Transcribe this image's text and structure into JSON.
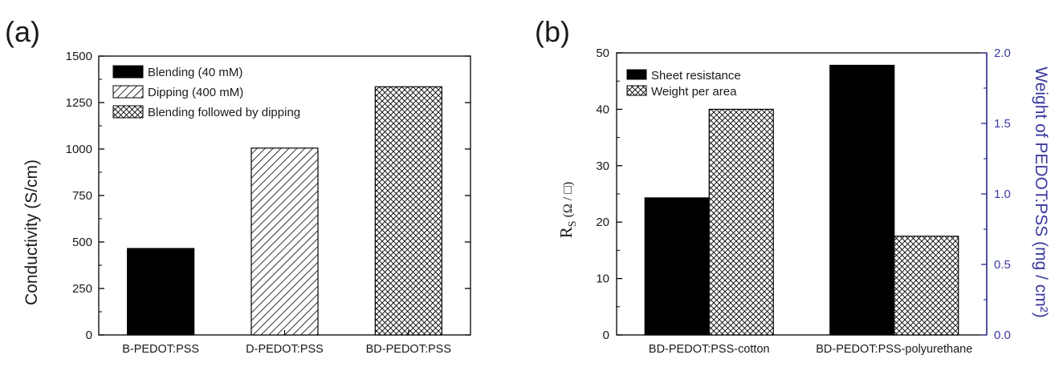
{
  "colors": {
    "bar_fill_solid": "#000000",
    "pattern_bg": "#ffffff",
    "pattern_line": "#000000",
    "right_axis": "#3a3aa0"
  },
  "chart_data": [
    {
      "panel_label": "(a)",
      "type": "bar",
      "title": "",
      "xlabel": "",
      "ylabel": "Conductivity (S/cm)",
      "ylim": [
        0,
        1500
      ],
      "yticks": [
        "0",
        "250",
        "500",
        "750",
        "1000",
        "1250",
        "1500"
      ],
      "ytick_values": [
        0,
        250,
        500,
        750,
        1000,
        1250,
        1500
      ],
      "categories": [
        "B-PEDOT:PSS",
        "D-PEDOT:PSS",
        "BD-PEDOT:PSS"
      ],
      "values": [
        465,
        1005,
        1335
      ],
      "bar_patterns": [
        "solid",
        "diagonal",
        "crosshatch"
      ],
      "legend": [
        {
          "label": "Blending (40 mM)",
          "pattern": "solid"
        },
        {
          "label": "Dipping (400 mM)",
          "pattern": "diagonal"
        },
        {
          "label": "Blending followed by dipping",
          "pattern": "crosshatch"
        }
      ],
      "legend_position": "top-left",
      "grid": false
    },
    {
      "panel_label": "(b)",
      "type": "bar",
      "title": "",
      "xlabel": "",
      "ylabel_main": "R",
      "ylabel_sub": "S",
      "ylabel_rest": "(Ω / □)",
      "y2label": "Weight of PEDOT:PSS (mg / cm²)",
      "ylim": [
        0,
        50
      ],
      "y2lim": [
        0,
        2.0
      ],
      "yticks": [
        "0",
        "10",
        "20",
        "30",
        "40",
        "50"
      ],
      "ytick_values": [
        0,
        10,
        20,
        30,
        40,
        50
      ],
      "y2ticks": [
        "0.0",
        "0.5",
        "1.0",
        "1.5",
        "2.0"
      ],
      "y2tick_values": [
        0,
        0.5,
        1.0,
        1.5,
        2.0
      ],
      "categories": [
        "BD-PEDOT:PSS-cotton",
        "BD-PEDOT:PSS-polyurethane"
      ],
      "series": [
        {
          "name": "Sheet resistance",
          "axis": "left",
          "pattern": "solid",
          "values": [
            24.3,
            47.8
          ]
        },
        {
          "name": "Weight per area",
          "axis": "right",
          "pattern": "crosshatch",
          "values": [
            1.6,
            0.7
          ]
        }
      ],
      "legend_position": "top-left",
      "grid": false
    }
  ]
}
